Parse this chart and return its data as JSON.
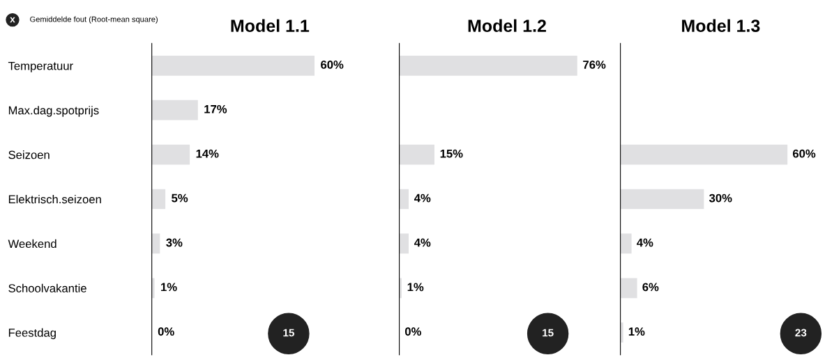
{
  "chart_data": [
    {
      "type": "bar",
      "orientation": "horizontal",
      "title": "Model 1.1",
      "categories": [
        "Temperatuur",
        "Max.dag.spotprijs",
        "Seizoen",
        "Elektrisch.seizoen",
        "Weekend",
        "Schoolvakantie",
        "Feestdag"
      ],
      "values": [
        60,
        17,
        14,
        5,
        3,
        1,
        0
      ],
      "value_labels": [
        "60%",
        "17%",
        "14%",
        "5%",
        "3%",
        "1%",
        "0%"
      ],
      "color": "#e0e0e2",
      "tick_labels": "y",
      "grid": false,
      "legend": false,
      "annotations": [
        "x",
        "Gemiddelde fout (Root-mean square)",
        "15"
      ]
    },
    {
      "type": "bar",
      "orientation": "horizontal",
      "title": "Model 1.2",
      "categories": [
        null,
        null,
        null,
        null,
        null,
        null,
        null
      ],
      "values": [
        76,
        null,
        15,
        4,
        4,
        1,
        0
      ],
      "value_labels": [
        "76%",
        null,
        "15%",
        "4%",
        "4%",
        "1%",
        "0%"
      ],
      "color": "#e0e0e2",
      "tick_labels": false,
      "grid": false,
      "legend": false,
      "annotations": [
        "15"
      ]
    },
    {
      "type": "bar",
      "orientation": "horizontal",
      "title": "Model 1.3",
      "categories": [
        null,
        null,
        null,
        null,
        null,
        null,
        null
      ],
      "values": [
        null,
        null,
        60,
        30,
        4,
        6,
        1
      ],
      "value_labels": [
        null,
        null,
        "60%",
        "30%",
        "4%",
        "6%",
        "1%"
      ],
      "color": "#e0e0e2",
      "tick_labels": false,
      "grid": false,
      "legend": false,
      "annotations": [
        "23"
      ]
    }
  ]
}
